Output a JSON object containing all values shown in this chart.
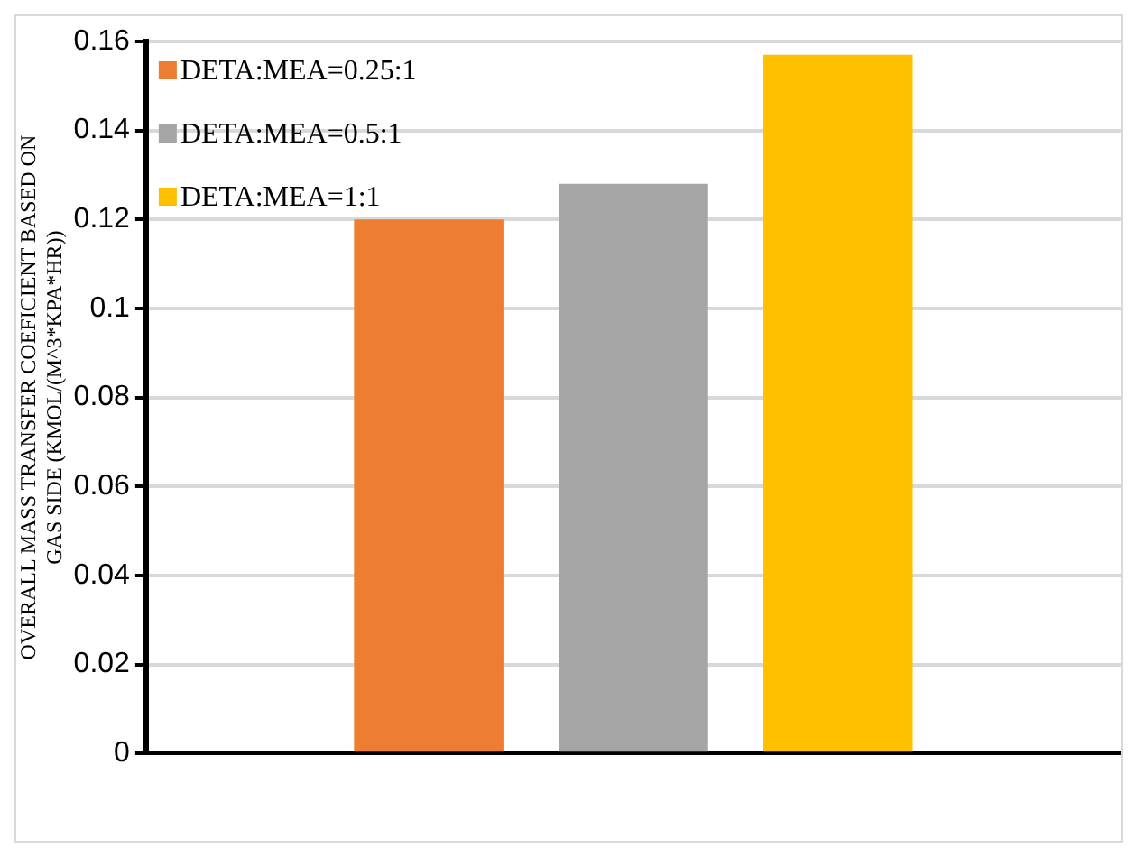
{
  "chart_data": {
    "type": "bar",
    "ylabel": "OVERALL MASS TRANSFER COEFICIENT BASED ON GAS SIDE (KMOL/(M^3*KPA*HR))",
    "categories": [
      null
    ],
    "series": [
      {
        "name": "DETA:MEA=0.25:1",
        "color": "#ed7d31",
        "values": [
          0.12
        ]
      },
      {
        "name": "DETA:MEA=0.5:1",
        "color": "#a5a5a5",
        "values": [
          0.128
        ]
      },
      {
        "name": "DETA:MEA=1:1",
        "color": "#ffc000",
        "values": [
          0.157
        ]
      }
    ],
    "ylim": [
      0,
      0.16
    ],
    "yticks": [
      0,
      0.02,
      0.04,
      0.06,
      0.08,
      0.1,
      0.12,
      0.14,
      0.16
    ],
    "grid": "y",
    "legend": "top left"
  }
}
